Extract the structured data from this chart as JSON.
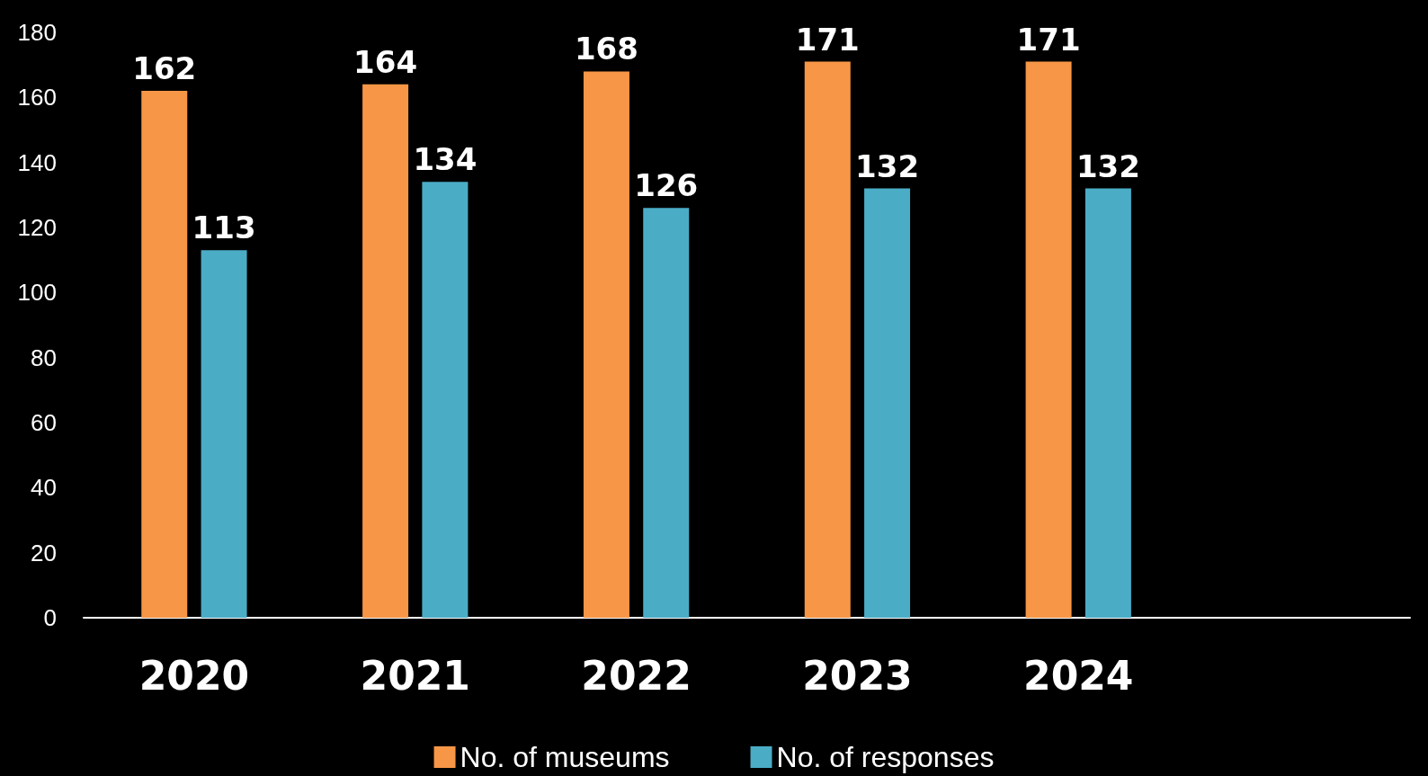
{
  "chart_data": {
    "type": "bar",
    "categories": [
      "2020",
      "2021",
      "2022",
      "2023",
      "2024",
      null
    ],
    "series": [
      {
        "name": "No. of museums",
        "color": "#f79646",
        "values": [
          162,
          164,
          168,
          171,
          171,
          null
        ]
      },
      {
        "name": "No. of responses",
        "color": "#4bacc6",
        "values": [
          113,
          134,
          126,
          132,
          132,
          null
        ]
      }
    ],
    "ylim": [
      0,
      180
    ],
    "yticks": [
      0,
      20,
      40,
      60,
      80,
      100,
      120,
      140,
      160,
      180
    ],
    "grid": false,
    "legend": "bottom",
    "data_labels": true
  }
}
